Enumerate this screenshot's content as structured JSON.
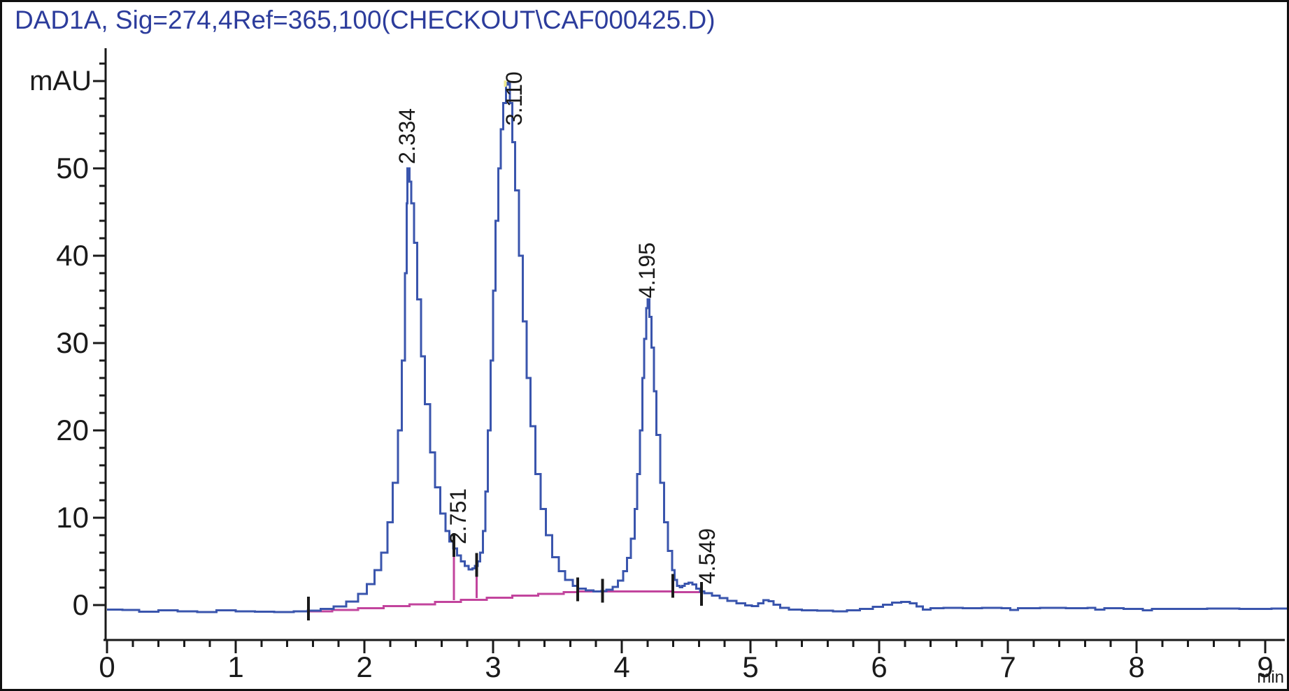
{
  "window": {
    "background": "#ffffff",
    "border_color": "#101010"
  },
  "title": {
    "text": "DAD1A, Sig=274,4Ref=365,100(CHECKOUT\\CAF000425.D)",
    "color": "#2c3c9c"
  },
  "chart_data": {
    "type": "line",
    "title": "DAD1A, Sig=274,4Ref=365,100(CHECKOUT\\CAF000425.D)",
    "xlabel": "min",
    "ylabel": "mAU",
    "xlim": [
      0,
      9.17
    ],
    "ylim": [
      -4,
      64
    ],
    "grid": false,
    "x_ticks": [
      0,
      1,
      2,
      3,
      4,
      5,
      6,
      7,
      8,
      9
    ],
    "x_minor_step": 0.2,
    "y_ticks": [
      0,
      10,
      20,
      30,
      40,
      50
    ],
    "y_minor_step": 2,
    "trace_color": "#3a55ad",
    "integration_color": "#c2449d",
    "marker_color": "#101010",
    "apex_marker": {
      "t": 3.095,
      "v": 59.9,
      "color": "#efe98f"
    },
    "peaks": [
      {
        "rt": "2.334",
        "height_mau": 50.0,
        "label_t": 2.326,
        "label_v": 50.5
      },
      {
        "rt": "2.751",
        "height_mau": 6.5,
        "label_t": 2.723,
        "label_v": 7.0
      },
      {
        "rt": "3.110",
        "height_mau": 59.8,
        "label_t": 3.158,
        "label_v": 54.9
      },
      {
        "rt": "4.195",
        "height_mau": 35.0,
        "label_t": 4.19,
        "label_v": 35.1
      },
      {
        "rt": "4.549",
        "height_mau": 2.5,
        "label_t": 4.658,
        "label_v": 2.4
      }
    ],
    "drop_lines": [
      {
        "t": 2.695,
        "v_top": 6.4,
        "v_bottom": 0.55
      },
      {
        "t": 2.872,
        "v_top": 4.7,
        "v_bottom": 0.82
      }
    ],
    "event_marks": [
      {
        "t": 1.565,
        "v": -0.4
      },
      {
        "t": 2.695,
        "v": 6.9
      },
      {
        "t": 2.872,
        "v": 4.6
      },
      {
        "t": 3.657,
        "v": 1.8
      },
      {
        "t": 3.85,
        "v": 1.65
      },
      {
        "t": 4.397,
        "v": 2.2
      },
      {
        "t": 4.62,
        "v": 1.3
      }
    ],
    "series": [
      {
        "name": "signal",
        "color": "#3a55ad",
        "points": [
          [
            0,
            -0.5
          ],
          [
            0.12,
            -0.55
          ],
          [
            0.25,
            -0.75
          ],
          [
            0.4,
            -0.6
          ],
          [
            0.55,
            -0.7
          ],
          [
            0.7,
            -0.8
          ],
          [
            0.85,
            -0.6
          ],
          [
            1.0,
            -0.7
          ],
          [
            1.15,
            -0.75
          ],
          [
            1.3,
            -0.8
          ],
          [
            1.45,
            -0.72
          ],
          [
            1.56,
            -0.65
          ],
          [
            1.66,
            -0.45
          ],
          [
            1.76,
            -0.15
          ],
          [
            1.86,
            0.4
          ],
          [
            1.95,
            1.3
          ],
          [
            2.02,
            2.4
          ],
          [
            2.08,
            4.0
          ],
          [
            2.13,
            6.0
          ],
          [
            2.18,
            9.5
          ],
          [
            2.22,
            14
          ],
          [
            2.26,
            20
          ],
          [
            2.29,
            28
          ],
          [
            2.315,
            38
          ],
          [
            2.33,
            46
          ],
          [
            2.335,
            50
          ],
          [
            2.35,
            48.5
          ],
          [
            2.365,
            46
          ],
          [
            2.385,
            41.5
          ],
          [
            2.41,
            35
          ],
          [
            2.44,
            28.5
          ],
          [
            2.47,
            23
          ],
          [
            2.51,
            17.5
          ],
          [
            2.55,
            13.5
          ],
          [
            2.59,
            10.5
          ],
          [
            2.63,
            8.5
          ],
          [
            2.66,
            7.3
          ],
          [
            2.69,
            6.5
          ],
          [
            2.72,
            5.7
          ],
          [
            2.75,
            5.0
          ],
          [
            2.78,
            4.5
          ],
          [
            2.81,
            4.1
          ],
          [
            2.84,
            4.2
          ],
          [
            2.86,
            4.5
          ],
          [
            2.88,
            5.0
          ],
          [
            2.9,
            6.0
          ],
          [
            2.92,
            8.5
          ],
          [
            2.94,
            13
          ],
          [
            2.96,
            20
          ],
          [
            2.98,
            28
          ],
          [
            3.0,
            36
          ],
          [
            3.02,
            44
          ],
          [
            3.04,
            50
          ],
          [
            3.06,
            54.5
          ],
          [
            3.08,
            57.5
          ],
          [
            3.1,
            59.6
          ],
          [
            3.115,
            59.8
          ],
          [
            3.13,
            57.5
          ],
          [
            3.15,
            53
          ],
          [
            3.17,
            47.5
          ],
          [
            3.2,
            40
          ],
          [
            3.23,
            32.5
          ],
          [
            3.26,
            26
          ],
          [
            3.29,
            20.5
          ],
          [
            3.33,
            15
          ],
          [
            3.37,
            11
          ],
          [
            3.41,
            8
          ],
          [
            3.46,
            5.5
          ],
          [
            3.51,
            3.9
          ],
          [
            3.56,
            2.9
          ],
          [
            3.62,
            2.2
          ],
          [
            3.66,
            1.9
          ],
          [
            3.72,
            1.7
          ],
          [
            3.78,
            1.55
          ],
          [
            3.84,
            1.6
          ],
          [
            3.88,
            1.75
          ],
          [
            3.93,
            2.1
          ],
          [
            3.97,
            2.8
          ],
          [
            4.01,
            3.9
          ],
          [
            4.04,
            5.4
          ],
          [
            4.07,
            7.6
          ],
          [
            4.1,
            11
          ],
          [
            4.12,
            15
          ],
          [
            4.14,
            20
          ],
          [
            4.16,
            26
          ],
          [
            4.175,
            30.5
          ],
          [
            4.19,
            34
          ],
          [
            4.2,
            35
          ],
          [
            4.215,
            33
          ],
          [
            4.23,
            29.5
          ],
          [
            4.25,
            24.5
          ],
          [
            4.27,
            19.5
          ],
          [
            4.3,
            14
          ],
          [
            4.33,
            9.5
          ],
          [
            4.36,
            6.2
          ],
          [
            4.39,
            4.0
          ],
          [
            4.41,
            2.9
          ],
          [
            4.43,
            2.2
          ],
          [
            4.45,
            2.05
          ],
          [
            4.47,
            2.2
          ],
          [
            4.49,
            2.45
          ],
          [
            4.52,
            2.55
          ],
          [
            4.55,
            2.35
          ],
          [
            4.58,
            1.9
          ],
          [
            4.61,
            1.55
          ],
          [
            4.64,
            1.35
          ],
          [
            4.7,
            1.1
          ],
          [
            4.76,
            0.8
          ],
          [
            4.82,
            0.5
          ],
          [
            4.89,
            0.2
          ],
          [
            4.96,
            -0.05
          ],
          [
            5.01,
            -0.1
          ],
          [
            5.06,
            0.2
          ],
          [
            5.1,
            0.55
          ],
          [
            5.14,
            0.45
          ],
          [
            5.18,
            0.05
          ],
          [
            5.23,
            -0.3
          ],
          [
            5.3,
            -0.5
          ],
          [
            5.4,
            -0.6
          ],
          [
            5.52,
            -0.65
          ],
          [
            5.64,
            -0.7
          ],
          [
            5.75,
            -0.6
          ],
          [
            5.85,
            -0.45
          ],
          [
            5.95,
            -0.2
          ],
          [
            6.03,
            0.05
          ],
          [
            6.1,
            0.3
          ],
          [
            6.17,
            0.35
          ],
          [
            6.24,
            0.2
          ],
          [
            6.29,
            -0.15
          ],
          [
            6.34,
            -0.5
          ],
          [
            6.4,
            -0.35
          ],
          [
            6.5,
            -0.3
          ],
          [
            6.65,
            -0.35
          ],
          [
            6.8,
            -0.3
          ],
          [
            6.95,
            -0.35
          ],
          [
            7.02,
            -0.55
          ],
          [
            7.08,
            -0.35
          ],
          [
            7.25,
            -0.3
          ],
          [
            7.45,
            -0.35
          ],
          [
            7.62,
            -0.3
          ],
          [
            7.68,
            -0.5
          ],
          [
            7.75,
            -0.35
          ],
          [
            7.9,
            -0.42
          ],
          [
            8.0,
            -0.45
          ],
          [
            8.05,
            -0.6
          ],
          [
            8.12,
            -0.45
          ],
          [
            8.3,
            -0.42
          ],
          [
            8.55,
            -0.4
          ],
          [
            8.8,
            -0.42
          ],
          [
            9.05,
            -0.4
          ],
          [
            9.17,
            -0.42
          ]
        ]
      },
      {
        "name": "integration-baseline",
        "color": "#c2449d",
        "points": [
          [
            1.565,
            -0.7
          ],
          [
            1.75,
            -0.55
          ],
          [
            1.95,
            -0.35
          ],
          [
            2.15,
            -0.12
          ],
          [
            2.35,
            0.1
          ],
          [
            2.55,
            0.35
          ],
          [
            2.75,
            0.62
          ],
          [
            2.95,
            0.85
          ],
          [
            3.15,
            1.1
          ],
          [
            3.35,
            1.3
          ],
          [
            3.55,
            1.48
          ],
          [
            3.66,
            1.55
          ],
          [
            3.9,
            1.58
          ],
          [
            4.15,
            1.55
          ],
          [
            4.4,
            1.5
          ],
          [
            4.62,
            1.5
          ]
        ]
      }
    ]
  }
}
